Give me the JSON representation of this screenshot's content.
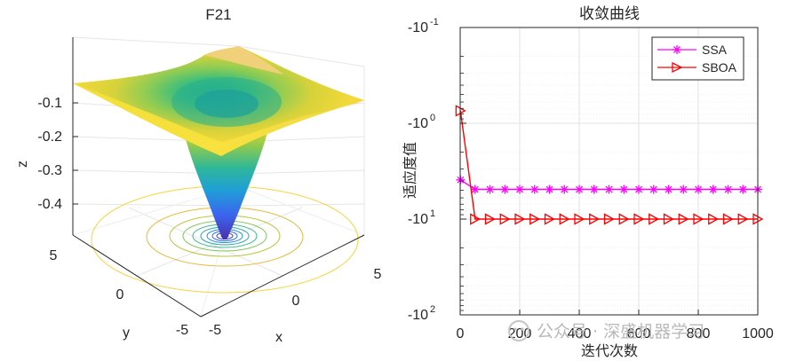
{
  "chart_data": [
    {
      "type": "surface",
      "title": "F21",
      "xlabel": "x",
      "ylabel": "y",
      "zlabel": "z",
      "x_ticks": [
        "-5",
        "0",
        "5"
      ],
      "y_ticks": [
        "-5",
        "0",
        "5"
      ],
      "z_ticks": [
        "-0.1",
        "-0.2",
        "-0.3",
        "-0.4"
      ],
      "xlim": [
        -5,
        5
      ],
      "ylim": [
        -5,
        5
      ],
      "zlim": [
        -0.5,
        -0.05
      ],
      "grid": true,
      "contour_levels": 10
    },
    {
      "type": "line",
      "title": "收敛曲线",
      "xlabel": "迭代次数",
      "ylabel": "适应度值",
      "xlim": [
        0,
        1000
      ],
      "yscale": "symlog",
      "x_ticks": [
        "0",
        "200",
        "400",
        "600",
        "800",
        "1000"
      ],
      "y_tick_labels": [
        {
          "base": "-10",
          "exp": "-1"
        },
        {
          "base": "-10",
          "exp": "0"
        },
        {
          "base": "-10",
          "exp": "1"
        },
        {
          "base": "-10",
          "exp": "2"
        }
      ],
      "y_tick_values": [
        -0.1,
        -1,
        -10,
        -100
      ],
      "grid": true,
      "legend_position": "top-right",
      "series": [
        {
          "name": "SSA",
          "color": "#ff00ff",
          "marker": "asterisk",
          "x": [
            1,
            50,
            100,
            150,
            200,
            250,
            300,
            350,
            400,
            450,
            500,
            550,
            600,
            650,
            700,
            750,
            800,
            850,
            900,
            950,
            1000
          ],
          "y": [
            -3.9,
            -4.9,
            -4.9,
            -4.9,
            -4.9,
            -4.9,
            -4.9,
            -4.9,
            -4.9,
            -4.9,
            -4.9,
            -4.9,
            -4.9,
            -4.9,
            -4.9,
            -4.9,
            -4.9,
            -4.9,
            -4.9,
            -4.9,
            -4.9
          ]
        },
        {
          "name": "SBOA",
          "color": "#ff0000",
          "marker": "triangle-right",
          "x": [
            1,
            50,
            100,
            150,
            200,
            250,
            300,
            350,
            400,
            450,
            500,
            550,
            600,
            650,
            700,
            750,
            800,
            850,
            900,
            950,
            1000
          ],
          "y": [
            -0.74,
            -10.0,
            -10.0,
            -10.0,
            -10.0,
            -10.0,
            -10.0,
            -10.0,
            -10.0,
            -10.0,
            -10.0,
            -10.0,
            -10.0,
            -10.0,
            -10.0,
            -10.0,
            -10.0,
            -10.0,
            -10.0,
            -10.0,
            -10.0
          ]
        }
      ]
    }
  ],
  "watermark": "公众号 · 深盛机器学习",
  "colors": {
    "axis": "#262626",
    "grid": "#e6e6e6",
    "minor_grid": "#f0f0f0"
  }
}
